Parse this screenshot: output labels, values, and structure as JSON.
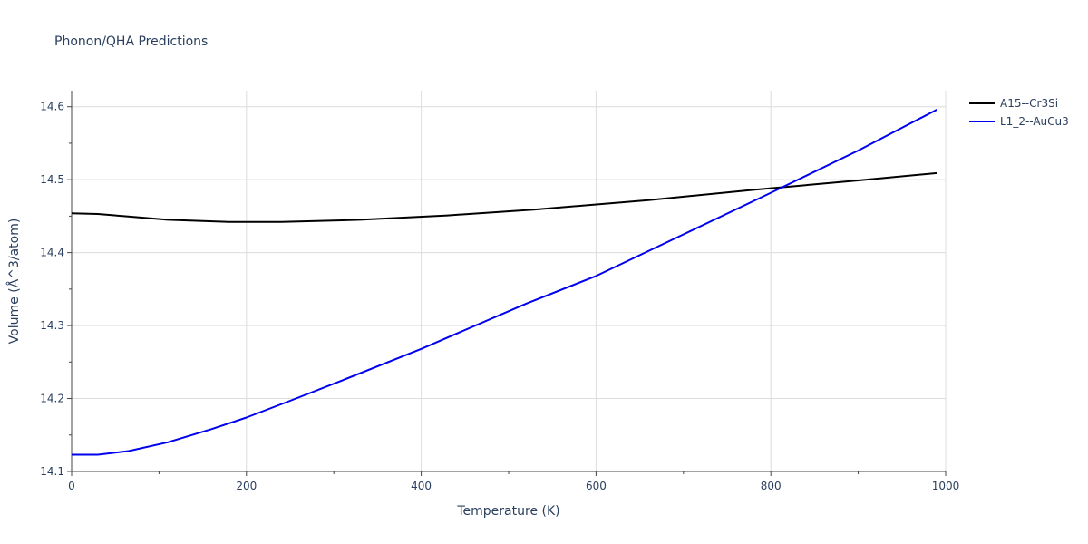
{
  "chart_data": {
    "type": "line",
    "title": "Phonon/QHA Predictions",
    "xlabel": "Temperature (K)",
    "ylabel": "Volume (Å^3/atom)",
    "xlim": [
      0,
      1000
    ],
    "ylim": [
      14.1,
      14.622
    ],
    "xticks": [
      0,
      200,
      400,
      600,
      800,
      1000
    ],
    "yticks": [
      14.1,
      14.2,
      14.3,
      14.4,
      14.5,
      14.6
    ],
    "grid": true,
    "legend_position": "top-right",
    "series": [
      {
        "name": "A15--Cr3Si",
        "color": "#000000",
        "x": [
          0,
          30,
          60,
          110,
          180,
          240,
          330,
          430,
          530,
          660,
          780,
          900,
          990
        ],
        "y": [
          14.454,
          14.453,
          14.45,
          14.445,
          14.442,
          14.442,
          14.445,
          14.451,
          14.459,
          14.472,
          14.486,
          14.499,
          14.509
        ]
      },
      {
        "name": "L1_2--AuCu3",
        "color": "#0000ee",
        "x": [
          0,
          30,
          65,
          110,
          160,
          200,
          250,
          310,
          400,
          520,
          600,
          700,
          800,
          900,
          990
        ],
        "y": [
          14.123,
          14.123,
          14.128,
          14.14,
          14.158,
          14.174,
          14.197,
          14.225,
          14.268,
          14.33,
          14.368,
          14.425,
          14.482,
          14.54,
          14.596
        ]
      }
    ]
  }
}
